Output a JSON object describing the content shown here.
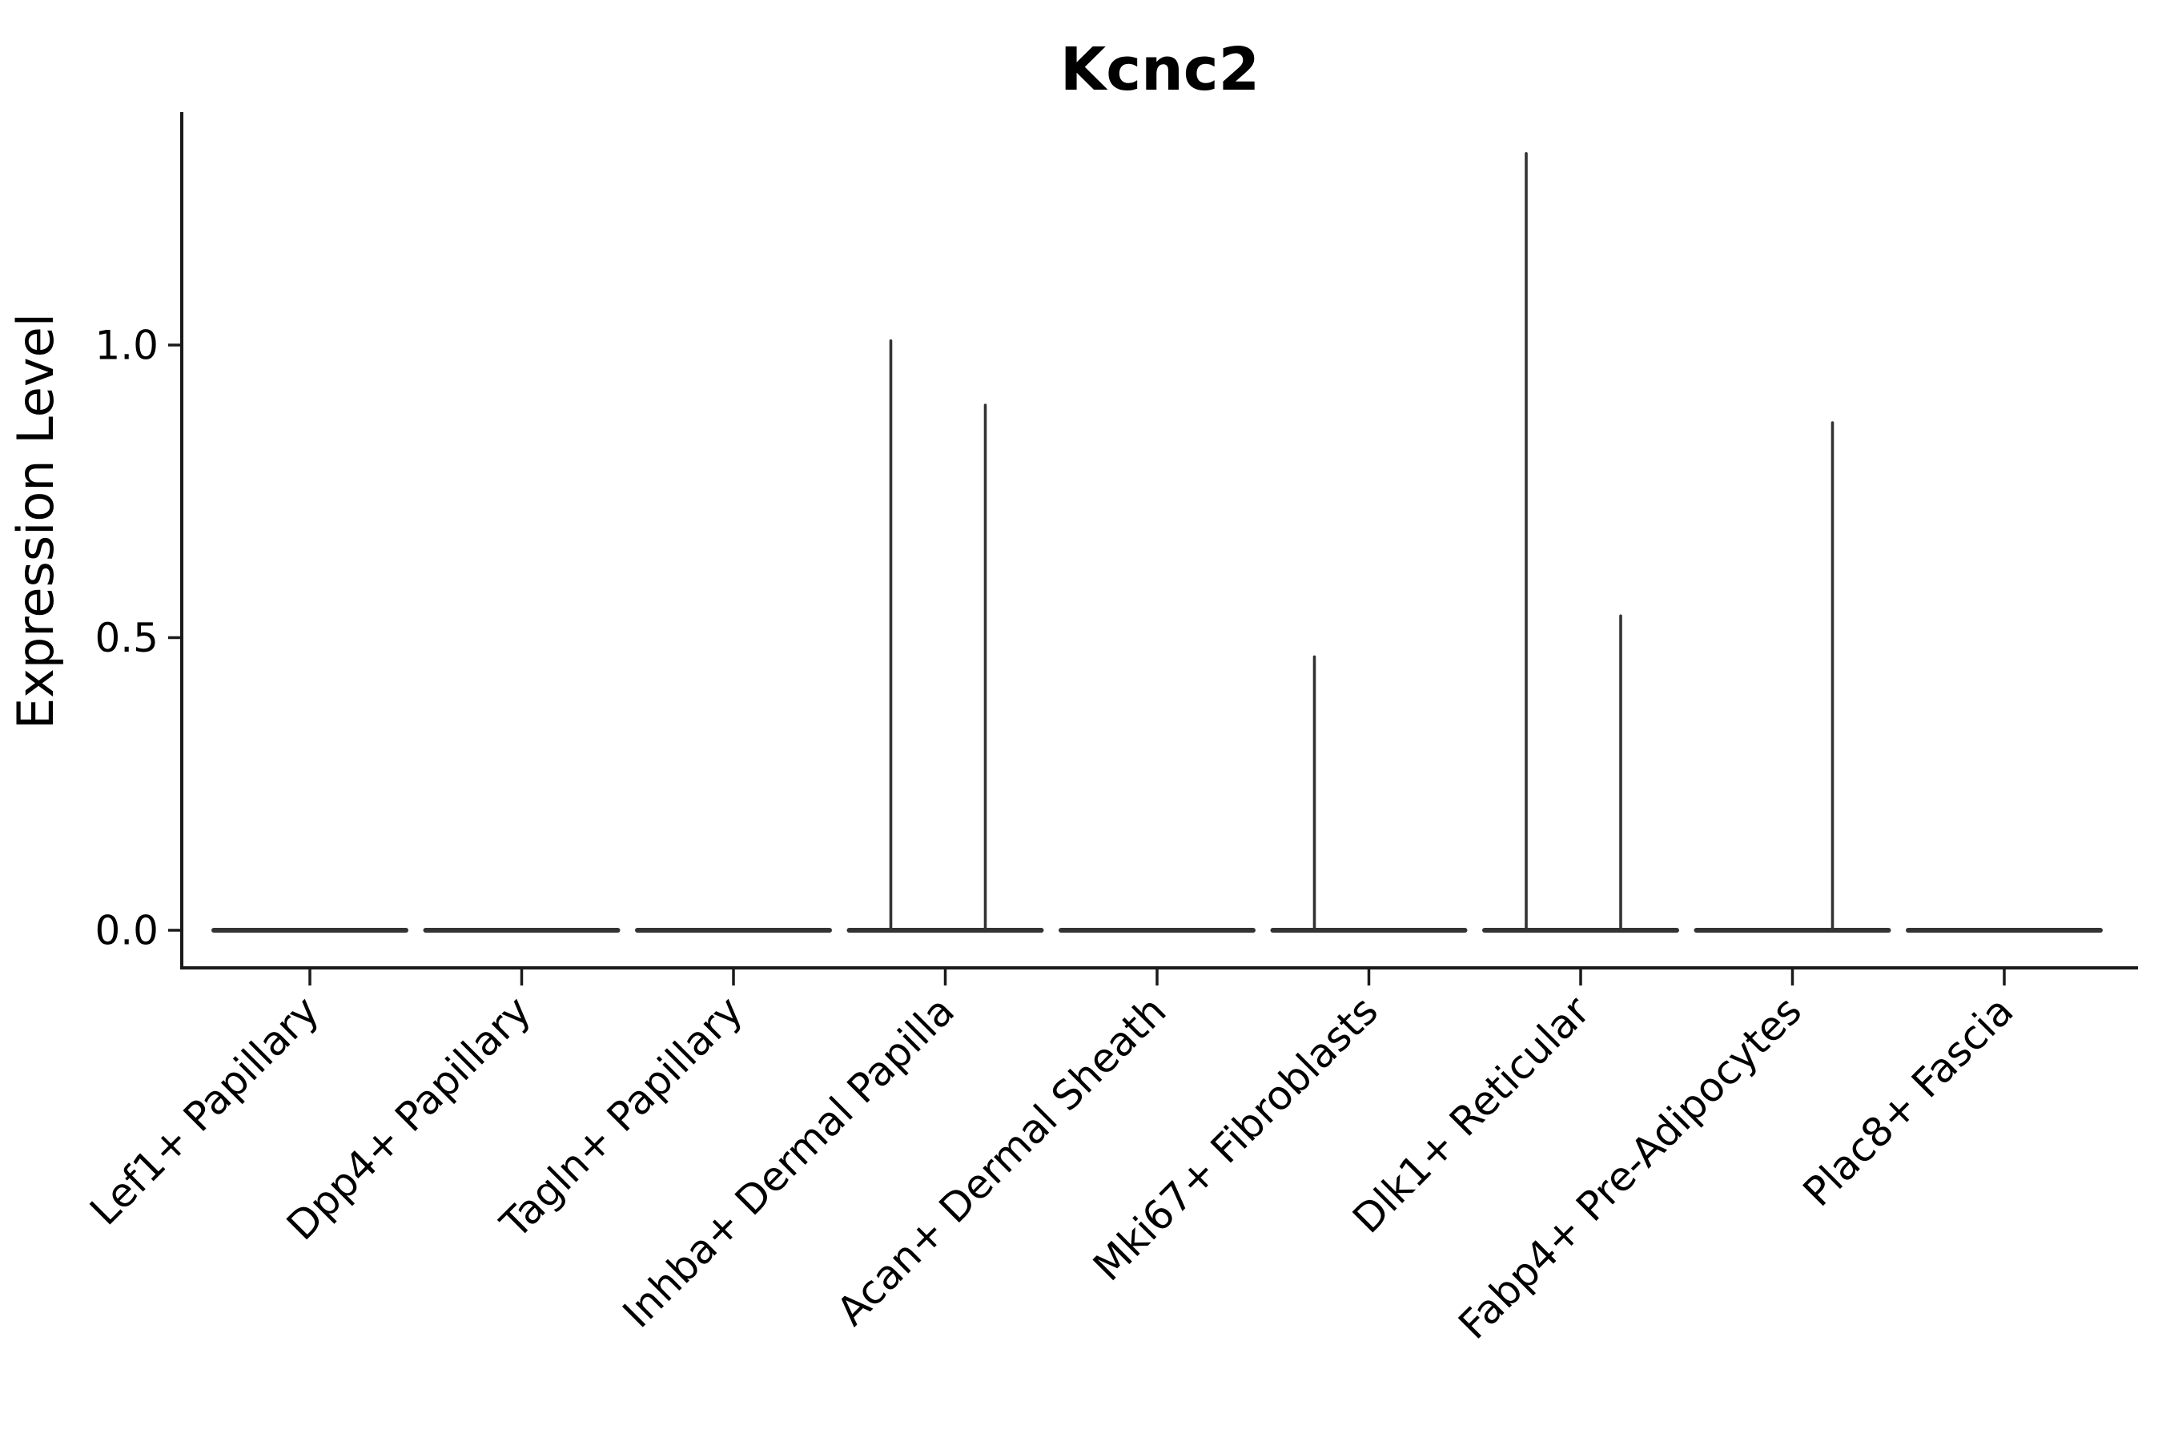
{
  "chart_data": {
    "type": "violin",
    "title": "Kcnc2",
    "ylabel": "Expression Level",
    "xlabel": "",
    "ylim": [
      0,
      1.4
    ],
    "yticks": [
      "0.0",
      "0.5",
      "1.0"
    ],
    "grid": false,
    "legend": "none",
    "categories": [
      "Lef1+ Papillary",
      "Dpp4+ Papillary",
      "Tagln+ Papillary",
      "Inhba+ Dermal Papilla",
      "Acan+ Dermal Sheath",
      "Mki67+ Fibroblasts",
      "Dlk1+ Reticular",
      "Fabp4+ Pre-Adipocytes",
      "Plac8+ Fascia"
    ],
    "max_expression_by_category": [
      0,
      0,
      0,
      1.01,
      0,
      0.47,
      1.33,
      0.87,
      0
    ],
    "series": [
      {
        "name": "violin-left",
        "max_expression": [
          0,
          0,
          0,
          1.01,
          0,
          0.47,
          1.33,
          0,
          0
        ]
      },
      {
        "name": "violin-right",
        "max_expression": [
          0,
          0,
          0,
          0.9,
          0,
          0,
          0.54,
          0.87,
          0
        ]
      }
    ],
    "spikes": [
      {
        "category": "Inhba+ Dermal Papilla",
        "category_index": 3,
        "side": "left",
        "max_value": 1.01
      },
      {
        "category": "Inhba+ Dermal Papilla",
        "category_index": 3,
        "side": "right",
        "max_value": 0.9
      },
      {
        "category": "Mki67+ Fibroblasts",
        "category_index": 5,
        "side": "left",
        "max_value": 0.47
      },
      {
        "category": "Dlk1+ Reticular",
        "category_index": 6,
        "side": "left",
        "max_value": 1.33
      },
      {
        "category": "Dlk1+ Reticular",
        "category_index": 6,
        "side": "right",
        "max_value": 0.54
      },
      {
        "category": "Fabp4+ Pre-Adipocytes",
        "category_index": 7,
        "side": "right",
        "max_value": 0.87
      }
    ],
    "colors": {
      "violin": "#333333",
      "axis": "#1a1a1a",
      "text": "#000000",
      "background": "#ffffff"
    }
  }
}
